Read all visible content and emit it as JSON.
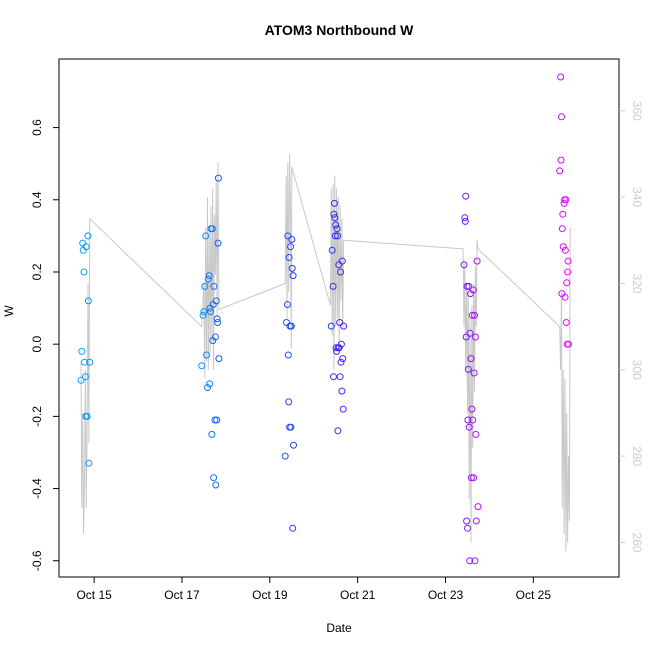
{
  "chart_data": {
    "type": "scatter",
    "title": "ATOM3 Northbound W",
    "xlabel": "Date",
    "ylabel": "W",
    "x_axis": {
      "type": "date",
      "ticks": [
        "Oct 15",
        "Oct 17",
        "Oct 19",
        "Oct 21",
        "Oct 23",
        "Oct 25"
      ],
      "range_days": [
        14.2,
        26.95
      ]
    },
    "y_axis_left": {
      "ticks": [
        "-0.6",
        "-0.4",
        "-0.2",
        "0.0",
        "0.2",
        "0.4",
        "0.6"
      ],
      "range": [
        -0.645,
        0.79
      ]
    },
    "y_axis_right": {
      "ticks": [
        "260",
        "280",
        "300",
        "320",
        "340",
        "360"
      ],
      "range": [
        252,
        372
      ],
      "color": "#cccccc"
    },
    "colors": {
      "line": "#c8c8c8",
      "points_start": "#00aaff",
      "points_mid": "#2a2af0",
      "points_end": "#ff00ff"
    },
    "series": [
      {
        "type": "points",
        "axis": "left",
        "points": [
          [
            14.7,
            -0.1
          ],
          [
            14.72,
            -0.02
          ],
          [
            14.74,
            0.28
          ],
          [
            14.75,
            0.26
          ],
          [
            14.77,
            0.2
          ],
          [
            14.78,
            -0.05
          ],
          [
            14.8,
            -0.09
          ],
          [
            14.81,
            -0.2
          ],
          [
            14.82,
            0.27
          ],
          [
            14.84,
            -0.2
          ],
          [
            14.86,
            0.3
          ],
          [
            14.87,
            0.12
          ],
          [
            14.88,
            -0.33
          ],
          [
            14.9,
            -0.05
          ],
          [
            17.45,
            -0.06
          ],
          [
            17.48,
            0.08
          ],
          [
            17.5,
            0.09
          ],
          [
            17.52,
            0.16
          ],
          [
            17.54,
            0.3
          ],
          [
            17.56,
            -0.03
          ],
          [
            17.58,
            -0.12
          ],
          [
            17.6,
            0.18
          ],
          [
            17.62,
            0.19
          ],
          [
            17.63,
            -0.11
          ],
          [
            17.64,
            0.1
          ],
          [
            17.65,
            0.09
          ],
          [
            17.66,
            0.32
          ],
          [
            17.68,
            -0.25
          ],
          [
            17.69,
            0.32
          ],
          [
            17.7,
            0.01
          ],
          [
            17.71,
            0.11
          ],
          [
            17.72,
            -0.37
          ],
          [
            17.73,
            0.16
          ],
          [
            17.75,
            -0.21
          ],
          [
            17.76,
            0.02
          ],
          [
            17.77,
            -0.39
          ],
          [
            17.78,
            0.12
          ],
          [
            17.79,
            -0.21
          ],
          [
            17.8,
            0.07
          ],
          [
            17.81,
            0.06
          ],
          [
            17.82,
            0.28
          ],
          [
            17.83,
            0.46
          ],
          [
            17.84,
            -0.04
          ],
          [
            19.35,
            -0.31
          ],
          [
            19.38,
            0.06
          ],
          [
            19.4,
            0.11
          ],
          [
            19.41,
            0.3
          ],
          [
            19.42,
            -0.03
          ],
          [
            19.43,
            -0.16
          ],
          [
            19.44,
            0.24
          ],
          [
            19.45,
            -0.23
          ],
          [
            19.46,
            0.05
          ],
          [
            19.47,
            0.27
          ],
          [
            19.48,
            -0.23
          ],
          [
            19.49,
            0.05
          ],
          [
            19.5,
            0.29
          ],
          [
            19.51,
            0.21
          ],
          [
            19.52,
            -0.51
          ],
          [
            19.53,
            0.19
          ],
          [
            19.54,
            -0.28
          ],
          [
            20.4,
            0.05
          ],
          [
            20.42,
            0.26
          ],
          [
            20.44,
            0.16
          ],
          [
            20.45,
            -0.09
          ],
          [
            20.46,
            0.36
          ],
          [
            20.47,
            0.39
          ],
          [
            20.48,
            0.35
          ],
          [
            20.49,
            0.3
          ],
          [
            20.5,
            0.33
          ],
          [
            20.51,
            -0.01
          ],
          [
            20.52,
            -0.02
          ],
          [
            20.53,
            0.32
          ],
          [
            20.54,
            0.3
          ],
          [
            20.55,
            -0.24
          ],
          [
            20.56,
            -0.01
          ],
          [
            20.57,
            0.22
          ],
          [
            20.58,
            -0.01
          ],
          [
            20.59,
            0.06
          ],
          [
            20.6,
            -0.09
          ],
          [
            20.61,
            0.2
          ],
          [
            20.62,
            -0.05
          ],
          [
            20.63,
            0.0
          ],
          [
            20.64,
            -0.13
          ],
          [
            20.65,
            0.23
          ],
          [
            20.66,
            -0.04
          ],
          [
            20.67,
            -0.18
          ],
          [
            20.68,
            0.05
          ],
          [
            23.42,
            0.22
          ],
          [
            23.44,
            0.35
          ],
          [
            23.45,
            0.34
          ],
          [
            23.46,
            0.41
          ],
          [
            23.47,
            0.02
          ],
          [
            23.48,
            -0.49
          ],
          [
            23.49,
            0.16
          ],
          [
            23.5,
            -0.51
          ],
          [
            23.51,
            -0.21
          ],
          [
            23.52,
            -0.07
          ],
          [
            23.53,
            0.16
          ],
          [
            23.54,
            -0.23
          ],
          [
            23.55,
            -0.6
          ],
          [
            23.56,
            0.03
          ],
          [
            23.57,
            0.14
          ],
          [
            23.58,
            -0.04
          ],
          [
            23.59,
            -0.37
          ],
          [
            23.6,
            -0.18
          ],
          [
            23.61,
            0.08
          ],
          [
            23.62,
            -0.21
          ],
          [
            23.63,
            0.15
          ],
          [
            23.64,
            -0.37
          ],
          [
            23.65,
            -0.08
          ],
          [
            23.66,
            0.08
          ],
          [
            23.67,
            -0.6
          ],
          [
            23.68,
            0.02
          ],
          [
            23.69,
            -0.25
          ],
          [
            23.7,
            -0.49
          ],
          [
            23.72,
            0.23
          ],
          [
            23.74,
            -0.45
          ],
          [
            25.6,
            0.48
          ],
          [
            25.62,
            0.74
          ],
          [
            25.63,
            0.51
          ],
          [
            25.64,
            0.63
          ],
          [
            25.65,
            0.14
          ],
          [
            25.66,
            0.32
          ],
          [
            25.67,
            0.36
          ],
          [
            25.68,
            0.27
          ],
          [
            25.7,
            0.39
          ],
          [
            25.71,
            0.4
          ],
          [
            25.72,
            0.13
          ],
          [
            25.73,
            0.26
          ],
          [
            25.74,
            0.4
          ],
          [
            25.75,
            0.06
          ],
          [
            25.76,
            0.17
          ],
          [
            25.77,
            0.0
          ],
          [
            25.78,
            0.2
          ],
          [
            25.79,
            0.23
          ],
          [
            25.8,
            0.0
          ]
        ]
      },
      {
        "type": "line",
        "axis": "right",
        "points": [
          [
            14.7,
            302
          ],
          [
            14.72,
            268
          ],
          [
            14.74,
            290
          ],
          [
            14.76,
            262
          ],
          [
            14.78,
            275
          ],
          [
            14.8,
            300
          ],
          [
            14.82,
            268
          ],
          [
            14.84,
            285
          ],
          [
            14.86,
            320
          ],
          [
            14.88,
            283
          ],
          [
            14.9,
            335
          ],
          [
            17.45,
            310
          ],
          [
            17.5,
            320
          ],
          [
            17.52,
            298
          ],
          [
            17.54,
            333
          ],
          [
            17.56,
            302
          ],
          [
            17.58,
            340
          ],
          [
            17.6,
            300
          ],
          [
            17.62,
            332
          ],
          [
            17.64,
            304
          ],
          [
            17.66,
            338
          ],
          [
            17.68,
            306
          ],
          [
            17.7,
            342
          ],
          [
            17.72,
            300
          ],
          [
            17.74,
            336
          ],
          [
            17.76,
            322
          ],
          [
            17.78,
            344
          ],
          [
            17.8,
            312
          ],
          [
            17.82,
            348
          ],
          [
            17.84,
            314
          ],
          [
            19.35,
            320
          ],
          [
            19.37,
            345
          ],
          [
            19.39,
            312
          ],
          [
            19.41,
            348
          ],
          [
            19.43,
            318
          ],
          [
            19.45,
            350
          ],
          [
            19.47,
            335
          ],
          [
            19.49,
            305
          ],
          [
            19.5,
            347
          ],
          [
            20.38,
            315
          ],
          [
            20.4,
            342
          ],
          [
            20.42,
            308
          ],
          [
            20.44,
            343
          ],
          [
            20.46,
            300
          ],
          [
            20.48,
            345
          ],
          [
            20.5,
            310
          ],
          [
            20.52,
            342
          ],
          [
            20.54,
            312
          ],
          [
            20.56,
            340
          ],
          [
            20.58,
            305
          ],
          [
            20.6,
            338
          ],
          [
            20.62,
            316
          ],
          [
            20.64,
            335
          ],
          [
            20.66,
            310
          ],
          [
            20.68,
            330
          ],
          [
            23.4,
            328
          ],
          [
            23.42,
            310
          ],
          [
            23.44,
            325
          ],
          [
            23.46,
            300
          ],
          [
            23.48,
            320
          ],
          [
            23.5,
            290
          ],
          [
            23.52,
            318
          ],
          [
            23.54,
            270
          ],
          [
            23.56,
            312
          ],
          [
            23.58,
            260
          ],
          [
            23.6,
            315
          ],
          [
            23.62,
            282
          ],
          [
            23.64,
            320
          ],
          [
            23.66,
            295
          ],
          [
            23.68,
            324
          ],
          [
            23.7,
            310
          ],
          [
            23.72,
            330
          ],
          [
            23.74,
            328
          ],
          [
            25.6,
            310
          ],
          [
            25.62,
            300
          ],
          [
            25.64,
            318
          ],
          [
            25.66,
            268
          ],
          [
            25.68,
            300
          ],
          [
            25.7,
            262
          ],
          [
            25.72,
            298
          ],
          [
            25.74,
            258
          ],
          [
            25.76,
            290
          ],
          [
            25.78,
            260
          ],
          [
            25.8,
            280
          ],
          [
            25.82,
            265
          ],
          [
            25.84,
            333
          ]
        ]
      }
    ]
  }
}
